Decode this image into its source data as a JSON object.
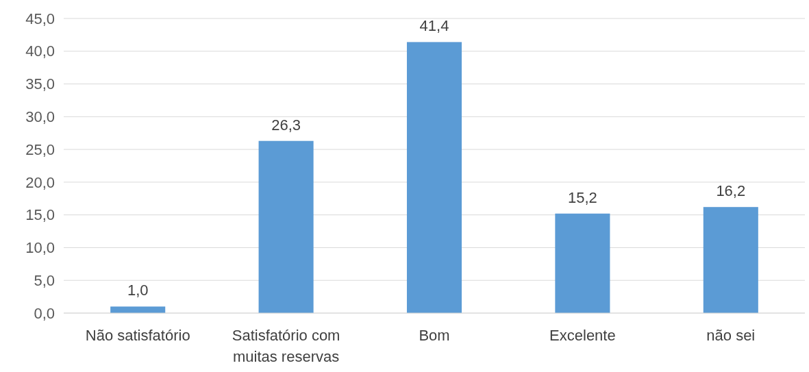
{
  "chart_data": {
    "type": "bar",
    "categories": [
      "Não satisfatório",
      "Satisfatório com muitas reservas",
      "Bom",
      "Excelente",
      "não sei"
    ],
    "values": [
      1.0,
      26.3,
      41.4,
      15.2,
      16.2
    ],
    "value_labels": [
      "1,0",
      "26,3",
      "41,4",
      "15,2",
      "16,2"
    ],
    "color": "#5b9bd5",
    "ylim": [
      0,
      45
    ],
    "yticks": [
      {
        "value": 0,
        "label": "0,0"
      },
      {
        "value": 5,
        "label": "5,0"
      },
      {
        "value": 10,
        "label": "10,0"
      },
      {
        "value": 15,
        "label": "15,0"
      },
      {
        "value": 20,
        "label": "20,0"
      },
      {
        "value": 25,
        "label": "25,0"
      },
      {
        "value": 30,
        "label": "30,0"
      },
      {
        "value": 35,
        "label": "35,0"
      },
      {
        "value": 40,
        "label": "40,0"
      },
      {
        "value": 45,
        "label": "45,0"
      }
    ],
    "grid": "y"
  }
}
